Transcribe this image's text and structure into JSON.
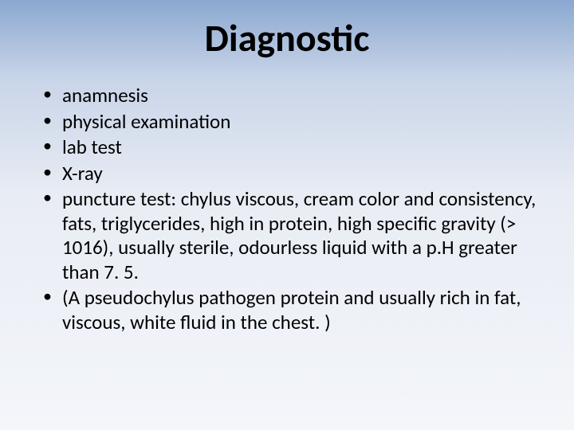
{
  "slide": {
    "background_gradient": [
      "#8aa8d0",
      "#c8d4e8",
      "#e8ecf4",
      "#f4f6fa"
    ],
    "title": "Diagnostic",
    "title_fontsize": 48,
    "title_fontweight": 700,
    "title_color": "#000000",
    "body_fontsize": 25,
    "body_color": "#000000",
    "bullet_color": "#000000",
    "bullets": [
      "anamnesis",
      "physical examination",
      "lab test",
      "X-ray",
      "puncture test: chylus viscous, cream color and consistency, fats, triglycerides, high in protein, high specific gravity (> 1016), usually sterile, odourless liquid with a p.H greater than 7. 5.",
      "(A pseudochylus pathogen protein and usually rich in fat, viscous, white fluid in the chest. )"
    ]
  }
}
